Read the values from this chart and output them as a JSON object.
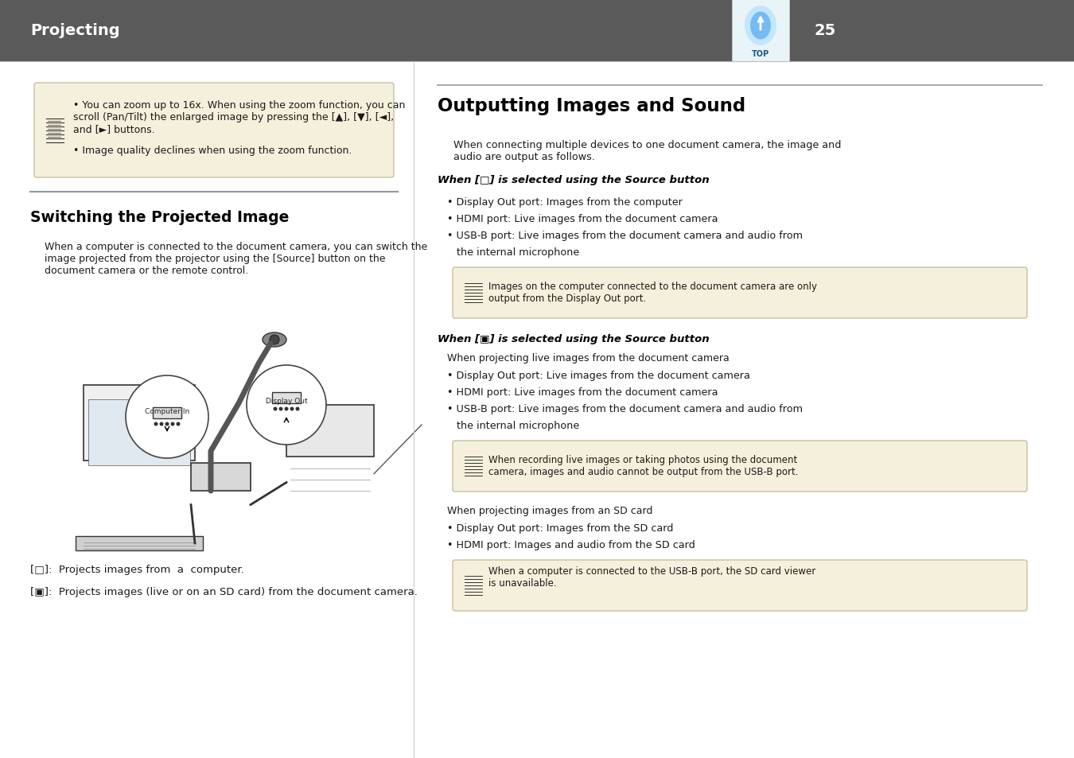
{
  "page_bg": "#ffffff",
  "header_bg": "#5a5a5a",
  "header_text": "Projecting",
  "header_text_color": "#ffffff",
  "header_page_num": "25",
  "note_box_bg": "#f5f0dc",
  "note_box_border": "#c8c0a0",
  "body_text_color": "#1a1a1a",
  "divider_color": "#999999",
  "left_note_text1": "You can zoom up to 16x. When using the zoom function, you can\nscroll (Pan/Tilt) the enlarged image by pressing the [▲], [▼], [◄],\nand [►] buttons.",
  "left_note_text2": "Image quality declines when using the zoom function.",
  "switching_title": "Switching the Projected Image",
  "switching_body": "When a computer is connected to the document camera, you can switch the\nimage projected from the projector using the [Source] button on the\ndocument camera or the remote control.",
  "caption1": "[□]: Projects images from a computer.",
  "caption2": "[▣]: Projects images (live or on an SD card) from the document camera.",
  "outputting_title": "Outputting Images and Sound",
  "outputting_intro": "When connecting multiple devices to one document camera, the image and\naudio are output as follows.",
  "when1_heading": "When [□] is selected using the Source button",
  "when1_bullets": [
    "Display Out port: Images from the computer",
    "HDMI port: Live images from the document camera",
    "USB-B port: Live images from the document camera and audio from\nthe internal microphone"
  ],
  "note1_text": "Images on the computer connected to the document camera are only\noutput from the Display Out port.",
  "when2_heading": "When [▣] is selected using the Source button",
  "when2_sub": "When projecting live images from the document camera",
  "when2_bullets": [
    "Display Out port: Live images from the document camera",
    "HDMI port: Live images from the document camera",
    "USB-B port: Live images from the document camera and audio from\nthe internal microphone"
  ],
  "note2_text": "When recording live images or taking photos using the document\ncamera, images and audio cannot be output from the USB-B port.",
  "when2b_sub": "When projecting images from an SD card",
  "when2b_bullets": [
    "Display Out port: Images from the SD card",
    "HDMI port: Images and audio from the SD card"
  ],
  "note3_text": "When a computer is connected to the USB-B port, the SD card viewer\nis unavailable."
}
